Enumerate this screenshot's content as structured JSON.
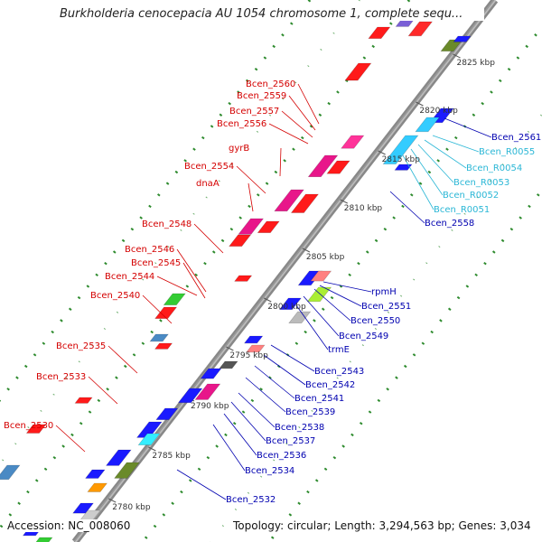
{
  "title": "Burkholderia cenocepacia AU 1054 chromosome 1, complete sequ...",
  "footer": {
    "accession": "Accession: NC_008060",
    "summary": "Topology: circular; Length: 3,294,563 bp; Genes: 3,034"
  },
  "colors": {
    "red_label": "#d40000",
    "blue_label": "#0000b0",
    "cyan_label": "#2bb7d6",
    "grid_dots": "#2e8b2e",
    "backbone": "#888888"
  },
  "position_labels": [
    "2825 kbp",
    "2820 kbp",
    "2815 kbp",
    "2810 kbp",
    "2805 kbp",
    "2800 kbp",
    "2795 kbp",
    "2790 kbp",
    "2785 kbp",
    "2780 kbp"
  ],
  "genes_left": [
    "Bcen_2560",
    "Bcen_2559",
    "Bcen_2557",
    "Bcen_2556",
    "gyrB",
    "Bcen_2554",
    "dnaA",
    "Bcen_2548",
    "Bcen_2546",
    "Bcen_2545",
    "Bcen_2544",
    "Bcen_2540",
    "Bcen_2535",
    "Bcen_2533",
    "Bcen_2530"
  ],
  "genes_right": [
    {
      "name": "Bcen_2561",
      "color": "blue"
    },
    {
      "name": "Bcen_R0055",
      "color": "cyan"
    },
    {
      "name": "Bcen_R0054",
      "color": "cyan"
    },
    {
      "name": "Bcen_R0053",
      "color": "cyan"
    },
    {
      "name": "Bcen_R0052",
      "color": "cyan"
    },
    {
      "name": "Bcen_R0051",
      "color": "cyan"
    },
    {
      "name": "Bcen_2558",
      "color": "blue"
    },
    {
      "name": "rpmH",
      "color": "blue"
    },
    {
      "name": "Bcen_2551",
      "color": "blue"
    },
    {
      "name": "Bcen_2550",
      "color": "blue"
    },
    {
      "name": "Bcen_2549",
      "color": "blue"
    },
    {
      "name": "trmE",
      "color": "blue"
    },
    {
      "name": "Bcen_2543",
      "color": "blue"
    },
    {
      "name": "Bcen_2542",
      "color": "blue"
    },
    {
      "name": "Bcen_2541",
      "color": "blue"
    },
    {
      "name": "Bcen_2539",
      "color": "blue"
    },
    {
      "name": "Bcen_2538",
      "color": "blue"
    },
    {
      "name": "Bcen_2537",
      "color": "blue"
    },
    {
      "name": "Bcen_2536",
      "color": "blue"
    },
    {
      "name": "Bcen_2534",
      "color": "blue"
    },
    {
      "name": "Bcen_2532",
      "color": "blue"
    }
  ]
}
